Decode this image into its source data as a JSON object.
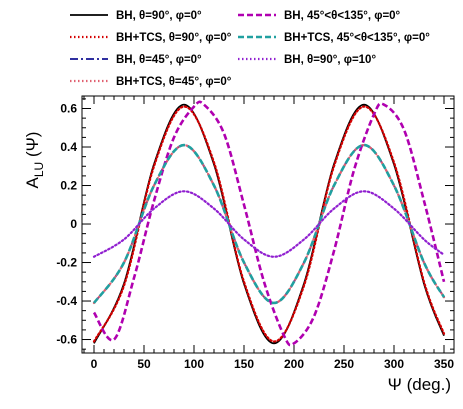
{
  "chart_data": {
    "type": "line",
    "xlabel": "Ψ (deg.)",
    "ylabel": "A",
    "ylabel_sub": "LU",
    "ylabel_suffix": " (Ψ)",
    "xlim": [
      -12,
      360
    ],
    "ylim": [
      -0.67,
      0.665
    ],
    "x_ticks": [
      0,
      50,
      100,
      150,
      200,
      250,
      300,
      350
    ],
    "y_ticks": [
      -0.6,
      -0.4,
      -0.2,
      0,
      0.2,
      0.4,
      0.6
    ],
    "y_tick_labels": [
      "-0.6",
      "-0.4",
      "-0.2",
      "0",
      "0.2",
      "0.4",
      "0.6"
    ],
    "grid": false,
    "legend_placement": "top",
    "series": [
      {
        "name": "BH, θ=90°, φ=0°",
        "color": "#000000",
        "style": "solid",
        "x": [
          0,
          30,
          60,
          90,
          120,
          150,
          180,
          210,
          240,
          270,
          300,
          330,
          350
        ],
        "y": [
          -0.62,
          -0.31,
          0.31,
          0.62,
          0.31,
          -0.31,
          -0.62,
          -0.31,
          0.31,
          0.62,
          0.31,
          -0.31,
          -0.58
        ]
      },
      {
        "name": "BH+TCS, θ=90°, φ=0°",
        "color": "#d40000",
        "style": "dotted",
        "x": [
          0,
          30,
          60,
          90,
          120,
          150,
          180,
          210,
          240,
          270,
          300,
          330,
          350
        ],
        "y": [
          -0.61,
          -0.32,
          0.3,
          0.61,
          0.32,
          -0.3,
          -0.61,
          -0.32,
          0.3,
          0.61,
          0.32,
          -0.3,
          -0.57
        ]
      },
      {
        "name": "BH, θ=45°, φ=0°",
        "color": "#3030a0",
        "style": "dashdot",
        "x": [
          0,
          30,
          60,
          90,
          120,
          150,
          180,
          210,
          240,
          270,
          300,
          330,
          350
        ],
        "y": [
          -0.41,
          -0.2,
          0.2,
          0.41,
          0.2,
          -0.2,
          -0.41,
          -0.2,
          0.2,
          0.41,
          0.2,
          -0.2,
          -0.38
        ]
      },
      {
        "name": "BH+TCS, θ=45°, φ=0°",
        "color": "#e06070",
        "style": "dotted",
        "x": [
          0,
          30,
          60,
          90,
          120,
          150,
          180,
          210,
          240,
          270,
          300,
          330,
          350
        ],
        "y": [
          -0.41,
          -0.2,
          0.2,
          0.41,
          0.2,
          -0.2,
          -0.41,
          -0.2,
          0.2,
          0.41,
          0.2,
          -0.2,
          -0.38
        ]
      },
      {
        "name": "BH, 45°<θ<135°, φ=0°",
        "color": "#b000b0",
        "style": "dashed",
        "x": [
          0,
          20,
          40,
          60,
          80,
          100,
          110,
          130,
          150,
          170,
          190,
          200,
          220,
          240,
          260,
          280,
          290,
          310,
          330,
          350
        ],
        "y": [
          -0.46,
          -0.6,
          -0.28,
          0.12,
          0.45,
          0.61,
          0.62,
          0.47,
          0.1,
          -0.3,
          -0.58,
          -0.62,
          -0.48,
          -0.14,
          0.28,
          0.57,
          0.62,
          0.49,
          0.12,
          -0.3
        ]
      },
      {
        "name": "BH+TCS, 45°<θ<135°, φ=0°",
        "color": "#20a0a0",
        "style": "dashed",
        "x": [
          0,
          30,
          60,
          90,
          120,
          150,
          180,
          210,
          240,
          270,
          300,
          330,
          350
        ],
        "y": [
          -0.41,
          -0.2,
          0.2,
          0.41,
          0.2,
          -0.2,
          -0.41,
          -0.2,
          0.2,
          0.41,
          0.2,
          -0.2,
          -0.38
        ]
      },
      {
        "name": "BH, θ=90°, φ=10°",
        "color": "#9020d0",
        "style": "dotted",
        "x": [
          0,
          30,
          60,
          90,
          120,
          150,
          180,
          210,
          240,
          270,
          300,
          330,
          350
        ],
        "y": [
          -0.17,
          -0.08,
          0.08,
          0.17,
          0.08,
          -0.08,
          -0.17,
          -0.08,
          0.08,
          0.17,
          0.08,
          -0.08,
          -0.16
        ]
      }
    ]
  }
}
